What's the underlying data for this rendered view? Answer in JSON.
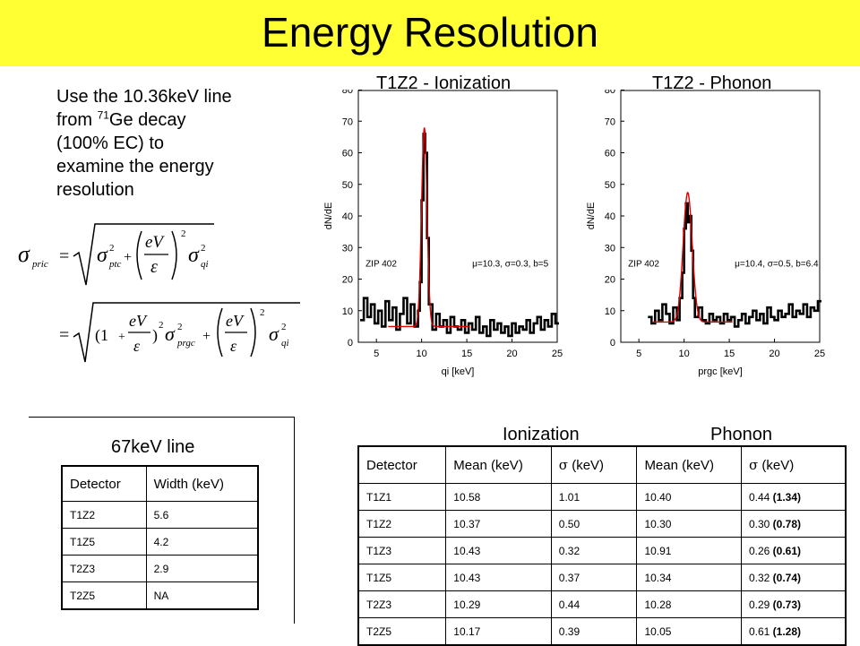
{
  "title": "Energy Resolution",
  "intro": {
    "line1": "Use the 10.36keV line",
    "line2_pre": "from ",
    "line2_sup": "71",
    "line2_post": "Ge decay",
    "line3": "(100% EC) to",
    "line4": "examine the energy",
    "line5": "resolution"
  },
  "formula": {
    "sigma": "σ",
    "sub_pric": "pric",
    "sub_ptc": "ptc",
    "sub_qi": "qi",
    "sub_prgc": "prgc",
    "eV": "eV",
    "eps": "ε",
    "sq": "2",
    "eq": "=",
    "plus": "+",
    "one": "(1",
    "close_paren": ")"
  },
  "plots": [
    {
      "title": "T1Z2 - Ionization",
      "ylabel": "dN/dE",
      "xlabel": "qi [keV]",
      "zip": "ZIP 402",
      "fit": "μ=10.3, σ=0.3, b=5",
      "xticks": [
        "5",
        "10",
        "15",
        "20",
        "25"
      ],
      "yticks": [
        "0",
        "10",
        "20",
        "30",
        "40",
        "50",
        "60",
        "70",
        "80"
      ],
      "xlim": [
        3,
        25
      ],
      "ylim": [
        0,
        80
      ],
      "fit_params": {
        "mu": 10.3,
        "sigma": 0.3,
        "b": 5,
        "peak": 63
      },
      "data": [
        [
          3.2,
          7
        ],
        [
          3.6,
          14
        ],
        [
          4.0,
          8
        ],
        [
          4.4,
          12
        ],
        [
          4.8,
          6
        ],
        [
          5.2,
          10
        ],
        [
          5.6,
          5
        ],
        [
          6.0,
          13
        ],
        [
          6.4,
          7
        ],
        [
          6.8,
          11
        ],
        [
          7.2,
          4
        ],
        [
          7.6,
          9
        ],
        [
          8.0,
          14
        ],
        [
          8.4,
          6
        ],
        [
          8.8,
          12
        ],
        [
          9.2,
          5
        ],
        [
          9.6,
          10
        ],
        [
          9.8,
          19
        ],
        [
          10.0,
          45
        ],
        [
          10.2,
          66
        ],
        [
          10.4,
          60
        ],
        [
          10.6,
          33
        ],
        [
          10.8,
          12
        ],
        [
          11.2,
          4
        ],
        [
          11.6,
          9
        ],
        [
          12.0,
          5
        ],
        [
          12.4,
          7
        ],
        [
          12.8,
          3
        ],
        [
          13.2,
          8
        ],
        [
          13.6,
          5
        ],
        [
          14.0,
          4
        ],
        [
          14.4,
          7
        ],
        [
          14.8,
          3
        ],
        [
          15.2,
          6
        ],
        [
          15.6,
          4
        ],
        [
          16.0,
          8
        ],
        [
          16.4,
          3
        ],
        [
          16.8,
          5
        ],
        [
          17.2,
          2
        ],
        [
          17.6,
          7
        ],
        [
          18.0,
          4
        ],
        [
          18.4,
          6
        ],
        [
          18.8,
          3
        ],
        [
          19.2,
          5
        ],
        [
          19.6,
          2
        ],
        [
          20.0,
          6
        ],
        [
          20.4,
          3
        ],
        [
          20.8,
          5
        ],
        [
          21.2,
          4
        ],
        [
          21.6,
          7
        ],
        [
          22.0,
          3
        ],
        [
          22.4,
          6
        ],
        [
          22.8,
          8
        ],
        [
          23.2,
          4
        ],
        [
          23.6,
          7
        ],
        [
          24.0,
          5
        ],
        [
          24.4,
          9
        ],
        [
          24.8,
          6
        ]
      ]
    },
    {
      "title": "T1Z2 - Phonon",
      "ylabel": "dN/dE",
      "xlabel": "prgc [keV]",
      "zip": "ZIP 402",
      "fit": "μ=10.4, σ=0.5, b=6.4",
      "xticks": [
        "5",
        "10",
        "15",
        "20",
        "25"
      ],
      "yticks": [
        "0",
        "10",
        "20",
        "30",
        "40",
        "50",
        "60",
        "70",
        "80"
      ],
      "xlim": [
        3,
        25
      ],
      "ylim": [
        0,
        80
      ],
      "fit_params": {
        "mu": 10.4,
        "sigma": 0.5,
        "b": 6.4,
        "peak": 41
      },
      "data": [
        [
          6.0,
          8
        ],
        [
          6.4,
          6
        ],
        [
          6.8,
          10
        ],
        [
          7.2,
          7
        ],
        [
          7.6,
          12
        ],
        [
          8.0,
          9
        ],
        [
          8.4,
          6
        ],
        [
          8.8,
          11
        ],
        [
          9.2,
          7
        ],
        [
          9.5,
          14
        ],
        [
          9.8,
          22
        ],
        [
          10.0,
          36
        ],
        [
          10.2,
          44
        ],
        [
          10.4,
          38
        ],
        [
          10.6,
          40
        ],
        [
          10.8,
          29
        ],
        [
          11.0,
          14
        ],
        [
          11.2,
          8
        ],
        [
          11.6,
          11
        ],
        [
          12.0,
          7
        ],
        [
          12.4,
          6
        ],
        [
          12.8,
          9
        ],
        [
          13.2,
          7
        ],
        [
          13.6,
          8
        ],
        [
          14.0,
          6
        ],
        [
          14.4,
          9
        ],
        [
          14.8,
          7
        ],
        [
          15.2,
          8
        ],
        [
          15.6,
          5
        ],
        [
          16.0,
          7
        ],
        [
          16.4,
          9
        ],
        [
          16.8,
          6
        ],
        [
          17.2,
          8
        ],
        [
          17.6,
          10
        ],
        [
          18.0,
          7
        ],
        [
          18.4,
          9
        ],
        [
          18.8,
          6
        ],
        [
          19.2,
          11
        ],
        [
          19.6,
          8
        ],
        [
          20.0,
          7
        ],
        [
          20.4,
          10
        ],
        [
          20.8,
          8
        ],
        [
          21.2,
          9
        ],
        [
          21.6,
          12
        ],
        [
          22.0,
          8
        ],
        [
          22.4,
          10
        ],
        [
          22.8,
          9
        ],
        [
          23.2,
          12
        ],
        [
          23.6,
          8
        ],
        [
          24.0,
          11
        ],
        [
          24.4,
          10
        ],
        [
          24.8,
          13
        ]
      ]
    }
  ],
  "line67": {
    "header": "67keV line",
    "columns": [
      "Detector",
      "Width (keV)"
    ],
    "rows": [
      [
        "T1Z2",
        "5.6"
      ],
      [
        "T1Z5",
        "4.2"
      ],
      [
        "T2Z3",
        "2.9"
      ],
      [
        "T2Z5",
        "NA"
      ]
    ]
  },
  "resolution": {
    "group_ionization": "Ionization",
    "group_phonon": "Phonon",
    "col_detector": "Detector",
    "col_mean_i": "Mean (keV)",
    "col_sigma_sym": "σ",
    "col_sigma_unit": " (keV)",
    "col_mean_p": "Mean (keV)",
    "rows": [
      {
        "det": "T1Z1",
        "mi": "10.58",
        "si": "1.01",
        "mp": "10.40",
        "sp": "0.44",
        "sp_b": "(1.34)"
      },
      {
        "det": "T1Z2",
        "mi": "10.37",
        "si": "0.50",
        "mp": "10.30",
        "sp": "0.30",
        "sp_b": "(0.78)"
      },
      {
        "det": "T1Z3",
        "mi": "10.43",
        "si": "0.32",
        "mp": "10.91",
        "sp": "0.26",
        "sp_b": "(0.61)"
      },
      {
        "det": "T1Z5",
        "mi": "10.43",
        "si": "0.37",
        "mp": "10.34",
        "sp": "0.32",
        "sp_b": "(0.74)"
      },
      {
        "det": "T2Z3",
        "mi": "10.29",
        "si": "0.44",
        "mp": "10.28",
        "sp": "0.29",
        "sp_b": "(0.73)"
      },
      {
        "det": "T2Z5",
        "mi": "10.17",
        "si": "0.39",
        "mp": "10.05",
        "sp": "0.61",
        "sp_b": "(1.28)"
      }
    ]
  }
}
